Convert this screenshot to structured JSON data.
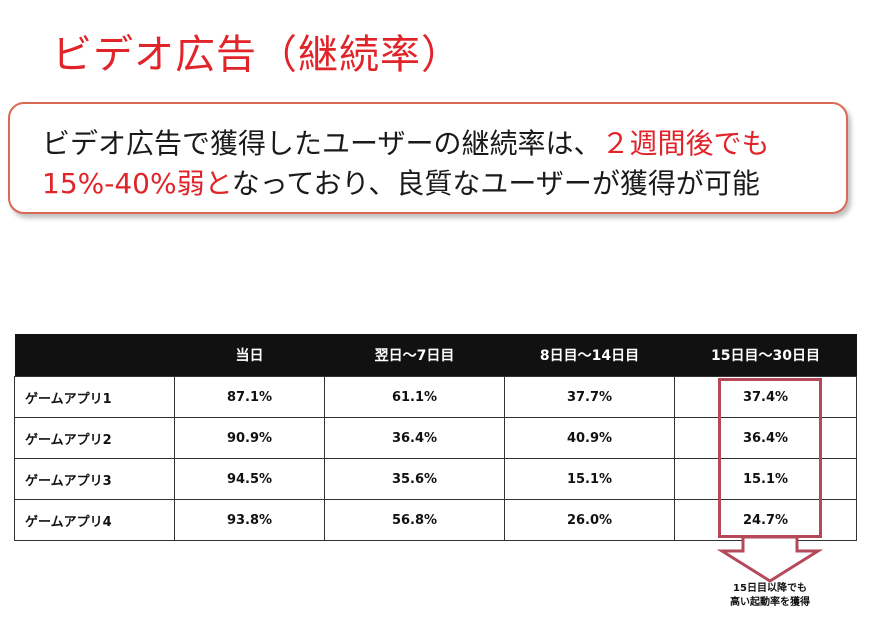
{
  "title": "ビデオ広告（継続率）",
  "callout": {
    "line1_text": "ビデオ広告で獲得したユーザーの継続率は、",
    "line1_highlight": "２週間後でも",
    "line2_highlight": "15%-40%弱と",
    "line2_text": "なっており、良質なユーザーが獲得が可能"
  },
  "table": {
    "headers": [
      "",
      "当日",
      "翌日～7日目",
      "8日目～14日目",
      "15日目～30日目"
    ],
    "rows": [
      {
        "app": "ゲームアプリ1",
        "values": [
          "87.1%",
          "61.1%",
          "37.7%",
          "37.4%"
        ]
      },
      {
        "app": "ゲームアプリ2",
        "values": [
          "90.9%",
          "36.4%",
          "40.9%",
          "36.4%"
        ]
      },
      {
        "app": "ゲームアプリ3",
        "values": [
          "94.5%",
          "35.6%",
          "15.1%",
          "15.1%"
        ]
      },
      {
        "app": "ゲームアプリ4",
        "values": [
          "93.8%",
          "56.8%",
          "26.0%",
          "24.7%"
        ]
      }
    ]
  },
  "note": {
    "line1": "15日目以降でも",
    "line2": "高い起動率を獲得"
  },
  "colors": {
    "accent_red": "#e0242a",
    "callout_border": "#d86a55",
    "highlight_box": "#b5485a",
    "header_bg": "#111111"
  }
}
